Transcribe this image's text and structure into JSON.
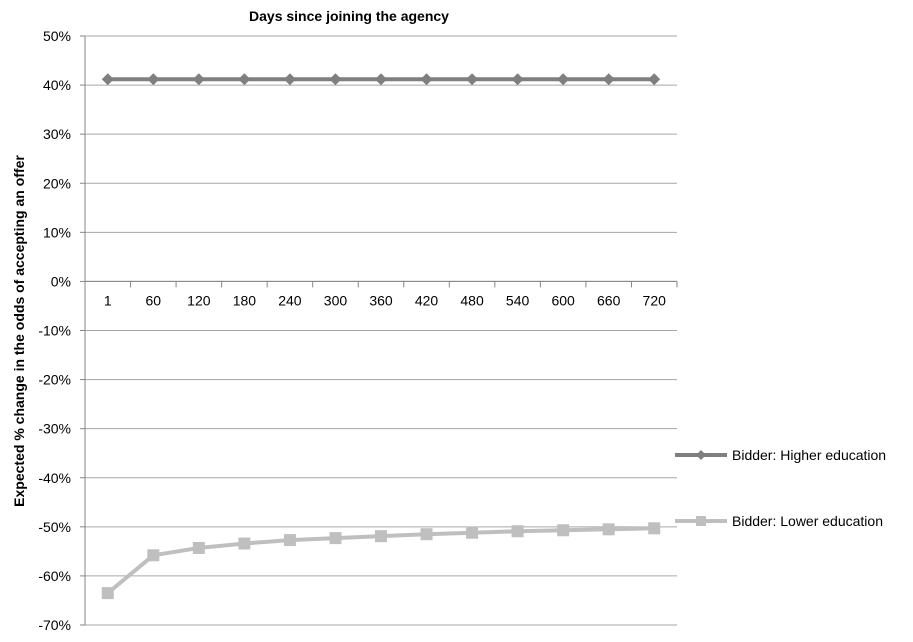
{
  "chart_data": {
    "type": "line",
    "title": "Days since joining the agency",
    "xlabel": "",
    "ylabel": "Expected % change in the odds of accepting an offer",
    "categories": [
      "1",
      "60",
      "120",
      "180",
      "240",
      "300",
      "360",
      "420",
      "480",
      "540",
      "600",
      "660",
      "720"
    ],
    "ylim": [
      -70,
      50
    ],
    "y_ticks": [
      50,
      40,
      30,
      20,
      10,
      0,
      -10,
      -20,
      -30,
      -40,
      -50,
      -60,
      -70
    ],
    "y_tick_labels": [
      "50%",
      "40%",
      "30%",
      "20%",
      "10%",
      "0%",
      "-10%",
      "-20%",
      "-30%",
      "-40%",
      "-50%",
      "-60%",
      "-70%"
    ],
    "x_axis_position": "at zero",
    "grid": true,
    "legend_position": "right",
    "series": [
      {
        "name": "Bidder: Higher education",
        "color": "#7f7f7f",
        "marker": "diamond",
        "values": [
          41.2,
          41.2,
          41.2,
          41.2,
          41.2,
          41.2,
          41.2,
          41.2,
          41.2,
          41.2,
          41.2,
          41.2,
          41.2
        ]
      },
      {
        "name": "Bidder: Lower education",
        "color": "#bfbfbf",
        "marker": "square",
        "values": [
          -63.5,
          -55.8,
          -54.3,
          -53.4,
          -52.7,
          -52.3,
          -51.9,
          -51.5,
          -51.2,
          -50.9,
          -50.7,
          -50.5,
          -50.3
        ]
      }
    ]
  }
}
